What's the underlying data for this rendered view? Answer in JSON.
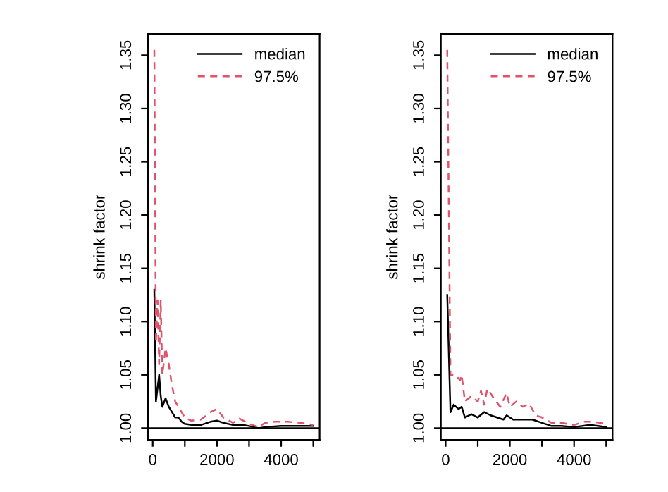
{
  "chart_data": [
    {
      "type": "line",
      "ylabel": "shrink factor",
      "xlim": [
        -148,
        5198
      ],
      "ylim": [
        0.989,
        1.37
      ],
      "xticks": [
        0,
        {
          "value": 1000,
          "label": null
        },
        2000,
        {
          "value": 3000,
          "label": null
        },
        4000,
        {
          "value": 5000,
          "label": null
        }
      ],
      "yticks": [
        {
          "value": 1.0,
          "label": "1.00"
        },
        1.05,
        {
          "value": 1.1,
          "label": "1.10"
        },
        1.15,
        {
          "value": 1.2,
          "label": "1.20"
        },
        1.25,
        {
          "value": 1.3,
          "label": "1.30"
        },
        1.35
      ],
      "legend": "top right",
      "grid": false,
      "ref_lines": [
        {
          "axis": "y",
          "value": 1,
          "color": "#000000"
        }
      ],
      "series": [
        {
          "name": "median",
          "color": "#000000",
          "line_style": "solid",
          "x": [
            50,
            100,
            200,
            250,
            300,
            400,
            500,
            600,
            700,
            800,
            900,
            1000,
            1200,
            1500,
            1800,
            2000,
            2200,
            2500,
            2800,
            3000,
            3300,
            3500,
            4000,
            4500,
            5000
          ],
          "values": [
            1.13,
            1.025,
            1.05,
            1.03,
            1.02,
            1.028,
            1.02,
            1.015,
            1.01,
            1.01,
            1.006,
            1.004,
            1.003,
            1.003,
            1.006,
            1.007,
            1.005,
            1.003,
            1.003,
            1.002,
            1.0,
            1.001,
            1.002,
            1.002,
            1.002
          ]
        },
        {
          "name": "97.5%",
          "color": "#df536b",
          "line_style": "dashed",
          "x": [
            50,
            100,
            150,
            200,
            250,
            300,
            400,
            500,
            600,
            700,
            800,
            1000,
            1200,
            1500,
            1800,
            2000,
            2200,
            2500,
            2700,
            3000,
            3300,
            3500,
            3800,
            4200,
            4600,
            5000
          ],
          "values": [
            1.355,
            1.08,
            1.12,
            1.06,
            1.12,
            1.05,
            1.075,
            1.06,
            1.04,
            1.025,
            1.02,
            1.01,
            1.007,
            1.008,
            1.015,
            1.018,
            1.01,
            1.005,
            1.009,
            1.004,
            1.001,
            1.005,
            1.006,
            1.006,
            1.005,
            1.003
          ]
        }
      ]
    },
    {
      "type": "line",
      "ylabel": "shrink factor",
      "xlim": [
        -148,
        5198
      ],
      "ylim": [
        0.989,
        1.37
      ],
      "xticks": [
        0,
        {
          "value": 1000,
          "label": null
        },
        2000,
        {
          "value": 3000,
          "label": null
        },
        4000,
        {
          "value": 5000,
          "label": null
        }
      ],
      "yticks": [
        {
          "value": 1.0,
          "label": "1.00"
        },
        1.05,
        {
          "value": 1.1,
          "label": "1.10"
        },
        1.15,
        {
          "value": 1.2,
          "label": "1.20"
        },
        1.25,
        {
          "value": 1.3,
          "label": "1.30"
        },
        1.35
      ],
      "legend": "top right",
      "grid": false,
      "ref_lines": [
        {
          "axis": "y",
          "value": 1,
          "color": "#000000"
        }
      ],
      "series": [
        {
          "name": "median",
          "color": "#000000",
          "line_style": "solid",
          "x": [
            50,
            150,
            250,
            400,
            500,
            600,
            800,
            1000,
            1200,
            1400,
            1600,
            1800,
            1900,
            2100,
            2400,
            2700,
            3000,
            3300,
            3600,
            4000,
            4500,
            5000
          ],
          "values": [
            1.125,
            1.015,
            1.022,
            1.018,
            1.02,
            1.01,
            1.013,
            1.01,
            1.015,
            1.012,
            1.01,
            1.008,
            1.012,
            1.008,
            1.008,
            1.008,
            1.005,
            1.002,
            1.002,
            1.001,
            1.003,
            1.001
          ]
        },
        {
          "name": "97.5%",
          "color": "#df536b",
          "line_style": "dashed",
          "x": [
            50,
            150,
            300,
            450,
            500,
            600,
            800,
            1000,
            1100,
            1200,
            1300,
            1500,
            1700,
            1900,
            2000,
            2200,
            2400,
            2600,
            2800,
            3000,
            3300,
            3600,
            4000,
            4300,
            4600,
            5000
          ],
          "values": [
            1.355,
            1.05,
            1.05,
            1.045,
            1.05,
            1.025,
            1.03,
            1.025,
            1.035,
            1.022,
            1.037,
            1.028,
            1.02,
            1.033,
            1.02,
            1.025,
            1.02,
            1.023,
            1.012,
            1.01,
            1.005,
            1.005,
            1.003,
            1.006,
            1.006,
            1.004
          ]
        }
      ]
    }
  ]
}
